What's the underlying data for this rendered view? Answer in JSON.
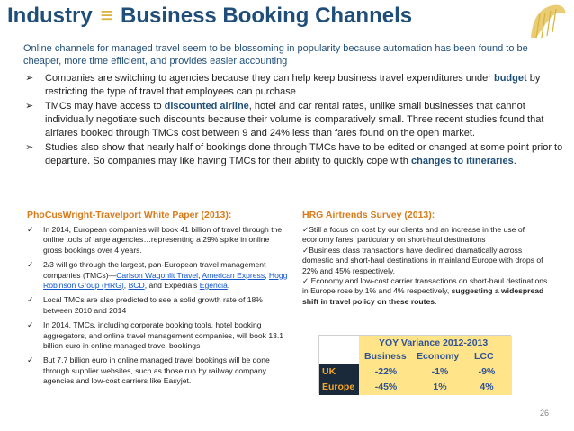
{
  "title": {
    "main": "Industry",
    "separator": "≡",
    "rest": "Business Booking Channels"
  },
  "intro": "Online channels for managed travel seem to be blossoming in popularity because automation has been found to be cheaper, more time efficient, and provides easier accounting",
  "bullets": [
    {
      "marker": "➢",
      "pre": "Companies are switching to agencies because they can help keep business travel expenditures under ",
      "hl": "budget",
      "post": " by restricting the type of travel that employees can purchase"
    },
    {
      "marker": "➢",
      "pre": "TMCs may have access to ",
      "hl": "discounted airline",
      "post": ", hotel and car rental rates, unlike small businesses that cannot individually negotiate such discounts because their volume is comparatively small. Three recent studies found that airfares booked through TMCs cost between 9 and 24% less than fares found on the open market."
    },
    {
      "marker": "➢",
      "pre": "Studies also show that nearly half of bookings done through TMCs have to be edited or changed at some point prior to departure. So companies may like having TMCs for their ability to quickly cope with ",
      "hl": "changes to itineraries",
      "post": "."
    }
  ],
  "left": {
    "heading": "PhoCusWright-Travelport White Paper (2013):",
    "items": [
      {
        "text": "In 2014, European companies will book 41 billion of travel through the online tools of large agencies…representing a 29% spike in online gross bookings over 4 years."
      },
      {
        "pre": "2/3 will go through the largest, pan-European travel management companies (TMCs)—",
        "links": [
          "Carlson Wagonlit Travel",
          "American Express",
          "Hogg Robinson Group (HRG)",
          "BCD"
        ],
        "mid": ", and Expedia’s ",
        "link_end": "Egencia",
        "post": "."
      },
      {
        "text": "Local TMCs are also predicted to see a solid growth rate of 18% between 2010 and 2014"
      },
      {
        "text": "In 2014, TMCs, including corporate booking tools, hotel booking aggregators, and online travel management companies, will book 13.1 billion euro in online managed travel bookings"
      },
      {
        "text": "But 7.7 billion euro in online managed travel bookings will be done through supplier websites, such as those run by railway company agencies and low-cost carriers like Easyjet."
      }
    ]
  },
  "right": {
    "heading": "HRG Airtrends Survey (2013):",
    "p1": "✓Still a focus on cost by our clients and an increase in the use of economy fares, particularly on short-haul destinations",
    "p2": "✓Business class transactions have declined dramatically across domestic and short-haul destinations in mainland Europe with drops of 22% and 45% respectively.",
    "p3": "✓ Economy and low-cost carrier transactions on short-haul destinations in Europe rose by 1% and 4% respectively,",
    "p3_bold": "suggesting a widespread shift in travel policy on these routes",
    "p3_end": "."
  },
  "yoy_table": {
    "title": "YOY Variance 2012-2013",
    "columns": [
      "Business",
      "Economy",
      "LCC"
    ],
    "rows": [
      {
        "label": "UK",
        "values": [
          "-22%",
          "-1%",
          "-9%"
        ]
      },
      {
        "label": "Europe",
        "values": [
          "-45%",
          "1%",
          "4%"
        ]
      }
    ]
  },
  "page_number": "26",
  "colors": {
    "title": "#1f4e79",
    "heading": "#d97b1a",
    "accent": "#d9b23a",
    "table_bg": "#ffe48a"
  },
  "icons": {
    "logo": "harp-logo-icon",
    "check": "check-icon",
    "arrow": "arrow-bullet-icon"
  }
}
